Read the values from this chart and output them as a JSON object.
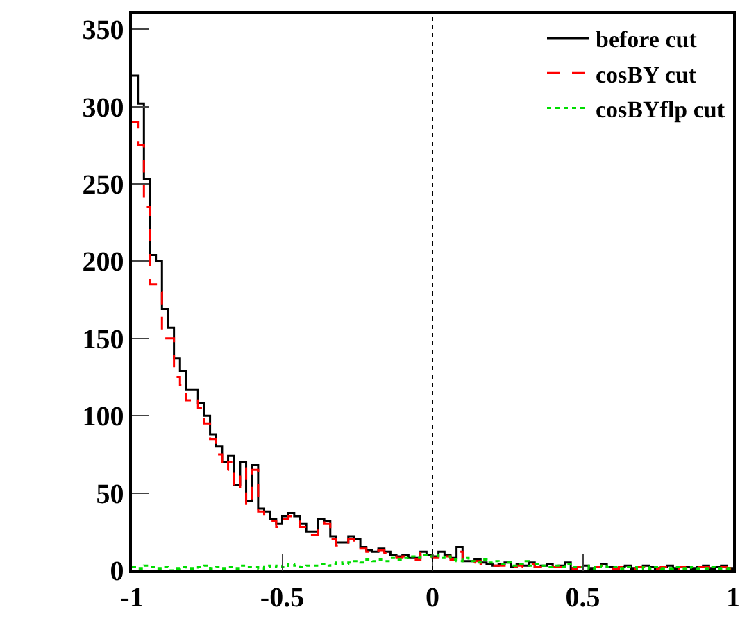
{
  "chart_data": {
    "type": "histogram",
    "bins": [
      -1,
      -0.98,
      -0.96,
      -0.94,
      -0.92,
      -0.9,
      -0.88,
      -0.86,
      -0.84,
      -0.82,
      -0.8,
      -0.78,
      -0.76,
      -0.74,
      -0.72,
      -0.7,
      -0.68,
      -0.66,
      -0.64,
      -0.62,
      -0.6,
      -0.58,
      -0.56,
      -0.54,
      -0.52,
      -0.5,
      -0.48,
      -0.46,
      -0.44,
      -0.42,
      -0.4,
      -0.38,
      -0.36,
      -0.34,
      -0.32,
      -0.3,
      -0.28,
      -0.26,
      -0.24,
      -0.22,
      -0.2,
      -0.18,
      -0.16,
      -0.14,
      -0.12,
      -0.1,
      -0.08,
      -0.06,
      -0.04,
      -0.02,
      0,
      0.02,
      0.04,
      0.06,
      0.08,
      0.1,
      0.12,
      0.14,
      0.16,
      0.18,
      0.2,
      0.22,
      0.24,
      0.26,
      0.28,
      0.3,
      0.32,
      0.34,
      0.36,
      0.38,
      0.4,
      0.42,
      0.44,
      0.46,
      0.48,
      0.5,
      0.52,
      0.54,
      0.56,
      0.58,
      0.6,
      0.62,
      0.64,
      0.66,
      0.68,
      0.7,
      0.72,
      0.74,
      0.76,
      0.78,
      0.8,
      0.82,
      0.84,
      0.86,
      0.88,
      0.9,
      0.92,
      0.94,
      0.96,
      0.98,
      1
    ],
    "series": [
      {
        "name": "before cut",
        "color": "#000000",
        "line_style": "solid",
        "values": [
          320,
          302,
          253,
          204,
          200,
          169,
          157,
          137,
          129,
          117,
          117,
          108,
          100,
          88,
          80,
          70,
          74,
          55,
          70,
          45,
          68,
          40,
          38,
          33,
          30,
          35,
          37,
          35,
          30,
          25,
          25,
          33,
          32,
          22,
          18,
          18,
          22,
          20,
          15,
          13,
          12,
          14,
          12,
          10,
          9,
          10,
          8,
          8,
          12,
          10,
          9,
          12,
          10,
          8,
          15,
          6,
          6,
          7,
          5,
          4,
          3,
          4,
          5,
          2,
          4,
          3,
          5,
          2,
          3,
          4,
          2,
          3,
          5,
          1,
          2,
          3,
          1,
          2,
          4,
          2,
          1,
          2,
          3,
          1,
          2,
          3,
          2,
          1,
          2,
          3,
          1,
          2,
          2,
          1,
          2,
          3,
          1,
          2,
          3,
          1
        ]
      },
      {
        "name": "cosBY cut",
        "color": "#ff0000",
        "line_style": "dashed",
        "values": [
          290,
          275,
          235,
          185,
          180,
          150,
          150,
          125,
          120,
          110,
          112,
          105,
          95,
          85,
          75,
          65,
          70,
          52,
          66,
          42,
          65,
          38,
          36,
          32,
          28,
          33,
          35,
          33,
          28,
          23,
          23,
          31,
          30,
          20,
          16,
          17,
          20,
          18,
          14,
          12,
          11,
          13,
          11,
          9,
          8,
          9,
          7,
          7,
          11,
          9,
          8,
          11,
          9,
          7,
          12,
          5,
          5,
          6,
          4,
          3,
          3,
          3,
          4,
          2,
          3,
          2,
          4,
          2,
          2,
          3,
          2,
          2,
          3,
          1,
          2,
          2,
          1,
          2,
          3,
          2,
          1,
          2,
          2,
          1,
          2,
          2,
          1,
          1,
          2,
          2,
          1,
          2,
          1,
          1,
          2,
          2,
          1,
          2,
          2,
          1
        ]
      },
      {
        "name": "cosBYflp cut",
        "color": "#00dd00",
        "line_style": "dotted",
        "values": [
          2,
          1,
          3,
          2,
          1,
          2,
          0,
          1,
          2,
          1,
          1,
          2,
          3,
          1,
          2,
          1,
          2,
          1,
          3,
          2,
          2,
          1,
          3,
          2,
          3,
          2,
          4,
          3,
          2,
          3,
          3,
          4,
          3,
          4,
          5,
          4,
          5,
          6,
          5,
          7,
          6,
          7,
          6,
          8,
          7,
          8,
          9,
          8,
          10,
          9,
          10,
          8,
          9,
          7,
          6,
          8,
          6,
          5,
          7,
          5,
          6,
          4,
          5,
          3,
          4,
          6,
          3,
          4,
          3,
          2,
          3,
          2,
          4,
          2,
          2,
          3,
          1,
          2,
          3,
          2,
          2,
          1,
          2,
          2,
          1,
          2,
          1,
          2,
          1,
          1,
          2,
          1,
          1,
          2,
          1,
          1,
          2,
          1,
          1,
          1
        ]
      }
    ],
    "xlim": [
      -1,
      1
    ],
    "ylim": [
      0,
      360
    ],
    "xticks": [
      -1,
      -0.5,
      0,
      0.5,
      1
    ],
    "yticks": [
      0,
      50,
      100,
      150,
      200,
      250,
      300,
      350
    ],
    "ref_lines": [
      {
        "axis": "x",
        "value": 0,
        "line_style": "dotted",
        "color": "#000000"
      }
    ],
    "grid": false,
    "legend": "top right"
  }
}
